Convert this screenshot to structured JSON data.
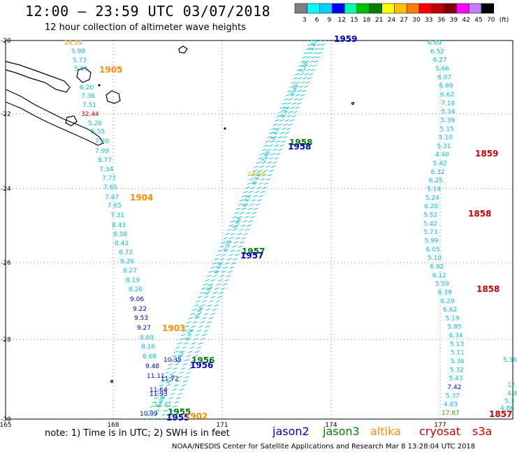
{
  "header": {
    "title": "12:00 – 23:59 UTC 03/07/2018",
    "subtitle": "12 hour collection of altimeter wave heights"
  },
  "colorbar": {
    "unit": "(ft)",
    "ticks": [
      "3",
      "6",
      "9",
      "12",
      "15",
      "18",
      "21",
      "24",
      "27",
      "30",
      "33",
      "36",
      "39",
      "42",
      "45",
      "70"
    ],
    "colors": [
      "#7f7f7f",
      "#00ffff",
      "#00d0ff",
      "#0000ff",
      "#00ffaa",
      "#00c000",
      "#008000",
      "#ffff00",
      "#ffc000",
      "#ff8000",
      "#ff0000",
      "#c00000",
      "#800000",
      "#ff00ff",
      "#c080ff",
      "#000000"
    ]
  },
  "axes": {
    "lon_ticks": [
      "165",
      "168",
      "171",
      "174",
      "177"
    ],
    "lat_ticks": [
      "-20",
      "-22",
      "-24",
      "-26",
      "-28",
      "-30"
    ]
  },
  "satellites": [
    {
      "name": "jason2",
      "color": "#0000cc"
    },
    {
      "name": "jason3",
      "color": "#008000"
    },
    {
      "name": "altika",
      "color": "#ff8c00"
    },
    {
      "name": "cryosat",
      "color": "#cc0000"
    },
    {
      "name": "s3a",
      "color": "#cc0000"
    }
  ],
  "pass_times": [
    {
      "text": "1959",
      "color": "#0000cc"
    },
    {
      "text": "1905",
      "color": "#ff8c00"
    },
    {
      "text": "1958",
      "color": "#008000"
    },
    {
      "text": "1958",
      "color": "#0000cc"
    },
    {
      "text": "1859",
      "color": "#cc0000"
    },
    {
      "text": "1904",
      "color": "#ff8c00"
    },
    {
      "text": "1858",
      "color": "#cc0000"
    },
    {
      "text": "1957",
      "color": "#008000"
    },
    {
      "text": "1957",
      "color": "#0000cc"
    },
    {
      "text": "1858",
      "color": "#cc0000"
    },
    {
      "text": "1903",
      "color": "#ff8c00"
    },
    {
      "text": "1956",
      "color": "#008000"
    },
    {
      "text": "1956",
      "color": "#0000cc"
    },
    {
      "text": "1955",
      "color": "#008000"
    },
    {
      "text": "1955",
      "color": "#0000cc"
    },
    {
      "text": "1902",
      "color": "#ff8c00"
    },
    {
      "text": "1857",
      "color": "#cc0000"
    }
  ],
  "track_left": [
    {
      "v": "28.55",
      "c": "#ff8c00"
    },
    {
      "v": "5.98",
      "c": "#00bfe0"
    },
    {
      "v": "5.73",
      "c": "#00bfe0"
    },
    {
      "v": "5.81",
      "c": "#00bfe0"
    },
    {
      "v": "6.20",
      "c": "#00bfe0"
    },
    {
      "v": "7.36",
      "c": "#00bfe0"
    },
    {
      "v": "7.51",
      "c": "#00bfe0"
    },
    {
      "v": "32.44",
      "c": "#cc0000"
    },
    {
      "v": "5.26",
      "c": "#00bfe0"
    },
    {
      "v": "5.55",
      "c": "#00bfe0"
    },
    {
      "v": "7.20",
      "c": "#00bfe0"
    },
    {
      "v": "7.99",
      "c": "#00bfe0"
    },
    {
      "v": "8.77",
      "c": "#00bfe0"
    },
    {
      "v": "7.34",
      "c": "#00bfe0"
    },
    {
      "v": "7.77",
      "c": "#00bfe0"
    },
    {
      "v": "7.65",
      "c": "#00bfe0"
    },
    {
      "v": "7.87",
      "c": "#00bfe0"
    },
    {
      "v": "7.65",
      "c": "#00bfe0"
    },
    {
      "v": "7.31",
      "c": "#00bfe0"
    },
    {
      "v": "8.43",
      "c": "#00bfe0"
    },
    {
      "v": "8.58",
      "c": "#00bfe0"
    },
    {
      "v": "8.43",
      "c": "#00bfe0"
    },
    {
      "v": "8.72",
      "c": "#00bfe0"
    },
    {
      "v": "8.26",
      "c": "#00bfe0"
    },
    {
      "v": "8.27",
      "c": "#00bfe0"
    },
    {
      "v": "8.19",
      "c": "#00bfe0"
    },
    {
      "v": "8.26",
      "c": "#00bfe0"
    },
    {
      "v": "9.06",
      "c": "#0000cc"
    },
    {
      "v": "9.22",
      "c": "#0000cc"
    },
    {
      "v": "9.53",
      "c": "#0000cc"
    },
    {
      "v": "9.27",
      "c": "#0000cc"
    },
    {
      "v": "8.69",
      "c": "#00bfe0"
    },
    {
      "v": "8.16",
      "c": "#00bfe0"
    },
    {
      "v": "8.68",
      "c": "#00bfe0"
    },
    {
      "v": "10.35",
      "c": "#0000cc"
    },
    {
      "v": "9.48",
      "c": "#0000cc"
    },
    {
      "v": "11.11",
      "c": "#0000cc"
    },
    {
      "v": "11.72",
      "c": "#0000cc"
    },
    {
      "v": "11.64",
      "c": "#0000cc"
    },
    {
      "v": "11.93",
      "c": "#0000cc"
    },
    {
      "v": "12.41",
      "c": "#33cc66"
    },
    {
      "v": "10.99",
      "c": "#0000cc"
    }
  ],
  "track_right": [
    {
      "v": "6.69",
      "c": "#00bfe0"
    },
    {
      "v": "6.52",
      "c": "#00bfe0"
    },
    {
      "v": "6.27",
      "c": "#00bfe0"
    },
    {
      "v": "5.66",
      "c": "#00bfe0"
    },
    {
      "v": "6.07",
      "c": "#00bfe0"
    },
    {
      "v": "6.69",
      "c": "#00bfe0"
    },
    {
      "v": "6.62",
      "c": "#00bfe0"
    },
    {
      "v": "7.18",
      "c": "#00bfe0"
    },
    {
      "v": "5.34",
      "c": "#00bfe0"
    },
    {
      "v": "5.39",
      "c": "#00bfe0"
    },
    {
      "v": "5.15",
      "c": "#00bfe0"
    },
    {
      "v": "5.10",
      "c": "#00bfe0"
    },
    {
      "v": "5.31",
      "c": "#00bfe0"
    },
    {
      "v": "4.40",
      "c": "#00bfe0"
    },
    {
      "v": "5.42",
      "c": "#00bfe0"
    },
    {
      "v": "6.32",
      "c": "#00bfe0"
    },
    {
      "v": "6.25",
      "c": "#00bfe0"
    },
    {
      "v": "5.19",
      "c": "#00bfe0"
    },
    {
      "v": "5.24",
      "c": "#00bfe0"
    },
    {
      "v": "6.20",
      "c": "#00bfe0"
    },
    {
      "v": "5.52",
      "c": "#00bfe0"
    },
    {
      "v": "5.42",
      "c": "#00bfe0"
    },
    {
      "v": "5.73",
      "c": "#00bfe0"
    },
    {
      "v": "5.99",
      "c": "#00bfe0"
    },
    {
      "v": "6.05",
      "c": "#00bfe0"
    },
    {
      "v": "5.10",
      "c": "#00bfe0"
    },
    {
      "v": "6.92",
      "c": "#00bfe0"
    },
    {
      "v": "6.12",
      "c": "#00bfe0"
    },
    {
      "v": "5.59",
      "c": "#00bfe0"
    },
    {
      "v": "6.39",
      "c": "#00bfe0"
    },
    {
      "v": "6.29",
      "c": "#00bfe0"
    },
    {
      "v": "6.62",
      "c": "#00bfe0"
    },
    {
      "v": "5.19",
      "c": "#00bfe0"
    },
    {
      "v": "5.85",
      "c": "#00bfe0"
    },
    {
      "v": "6.34",
      "c": "#00bfe0"
    },
    {
      "v": "5.13",
      "c": "#00bfe0"
    },
    {
      "v": "5.11",
      "c": "#00bfe0"
    },
    {
      "v": "5.36",
      "c": "#00bfe0"
    },
    {
      "v": "5.32",
      "c": "#00bfe0"
    },
    {
      "v": "5.43",
      "c": "#00bfe0"
    },
    {
      "v": "7.42",
      "c": "#0000cc"
    },
    {
      "v": "5.37",
      "c": "#00bfe0"
    },
    {
      "v": "4.83",
      "c": "#00bfe0"
    },
    {
      "v": "17.87",
      "c": "#33aa00"
    }
  ],
  "track_center": [
    "5.81",
    "7.28",
    "8.45",
    "9.31",
    "8.77",
    "7.45",
    "8.12",
    "6.77",
    "5.94",
    "6.55",
    "6.18",
    "7.02",
    "6.34",
    "5.76",
    "6.92",
    "7.11",
    "6.48"
  ],
  "track_center_highlight": {
    "v": "24.58",
    "c": "#e6b800"
  },
  "edge_values": [
    {
      "v": "5.36",
      "c": "#00bfe0"
    },
    {
      "v": "12.",
      "c": "#33cc66"
    },
    {
      "v": "4.8",
      "c": "#00bfe0"
    },
    {
      "v": "5.3",
      "c": "#00bfe0"
    },
    {
      "v": "4.86",
      "c": "#00bfe0"
    }
  ],
  "footer": {
    "note": "note: 1) Time is in UTC; 2) SWH is in feet",
    "credit": "NOAA/NESDIS Center for Satellite Applications and Research   Mar  8 13:28:04 UTC 2018"
  }
}
